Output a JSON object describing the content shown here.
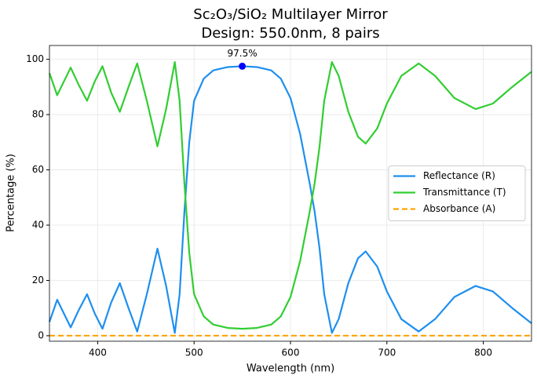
{
  "chart_data": {
    "type": "line",
    "title": "Sc₂O₃/SiO₂ Multilayer Mirror",
    "subtitle": "Design: 550.0nm, 8 pairs",
    "x_label": "Wavelength (nm)",
    "y_label": "Percentage (%)",
    "x": [
      350,
      358,
      365,
      372,
      380,
      389,
      397,
      405,
      414,
      423,
      432,
      441,
      451,
      462,
      471,
      480,
      485,
      490,
      495,
      500,
      510,
      520,
      535,
      550,
      565,
      580,
      590,
      600,
      610,
      620,
      625,
      630,
      635,
      643,
      650,
      660,
      670,
      678,
      690,
      700,
      715,
      733,
      750,
      770,
      792,
      810,
      830,
      850
    ],
    "series": [
      {
        "name": "Reflectance (R)",
        "color": "#1e8fef",
        "linestyle": "solid",
        "values": [
          5,
          13,
          8,
          3,
          9,
          15,
          8,
          2.5,
          12,
          19,
          10,
          1.5,
          15,
          31.5,
          18,
          1,
          15,
          45,
          70,
          85,
          93,
          96,
          97.2,
          97.5,
          97.2,
          96,
          93,
          86,
          73,
          55,
          45,
          32,
          15,
          1,
          6,
          19,
          28,
          30.5,
          25,
          16,
          6,
          1.5,
          6,
          14,
          18,
          16,
          10,
          4.5
        ]
      },
      {
        "name": "Transmittance (T)",
        "color": "#32cd32",
        "linestyle": "solid",
        "values": [
          95,
          87,
          92,
          97,
          91,
          85,
          92,
          97.5,
          88,
          81,
          90,
          98.5,
          85,
          68.5,
          82,
          99,
          85,
          55,
          30,
          15,
          7,
          4,
          2.8,
          2.5,
          2.8,
          4,
          7,
          14,
          27,
          45,
          55,
          68,
          85,
          99,
          94,
          81,
          72,
          69.5,
          75,
          84,
          94,
          98.5,
          94,
          86,
          82,
          84,
          90,
          95.5
        ]
      },
      {
        "name": "Absorbance (A)",
        "color": "#ffa500",
        "linestyle": "dashed",
        "values": [
          0,
          0,
          0,
          0,
          0,
          0,
          0,
          0,
          0,
          0,
          0,
          0,
          0,
          0,
          0,
          0,
          0,
          0,
          0,
          0,
          0,
          0,
          0,
          0,
          0,
          0,
          0,
          0,
          0,
          0,
          0,
          0,
          0,
          0,
          0,
          0,
          0,
          0,
          0,
          0,
          0,
          0,
          0,
          0,
          0,
          0,
          0,
          0
        ]
      }
    ],
    "annotations": [
      {
        "text": "97.5%",
        "x": 550,
        "y": 97.5,
        "color": "#0000ff"
      }
    ],
    "xlim": [
      350,
      850
    ],
    "ylim": [
      -2,
      105
    ],
    "xticks": [
      400,
      500,
      600,
      700,
      800
    ],
    "yticks": [
      0,
      20,
      40,
      60,
      80,
      100
    ],
    "grid": true,
    "legend": "center right"
  }
}
